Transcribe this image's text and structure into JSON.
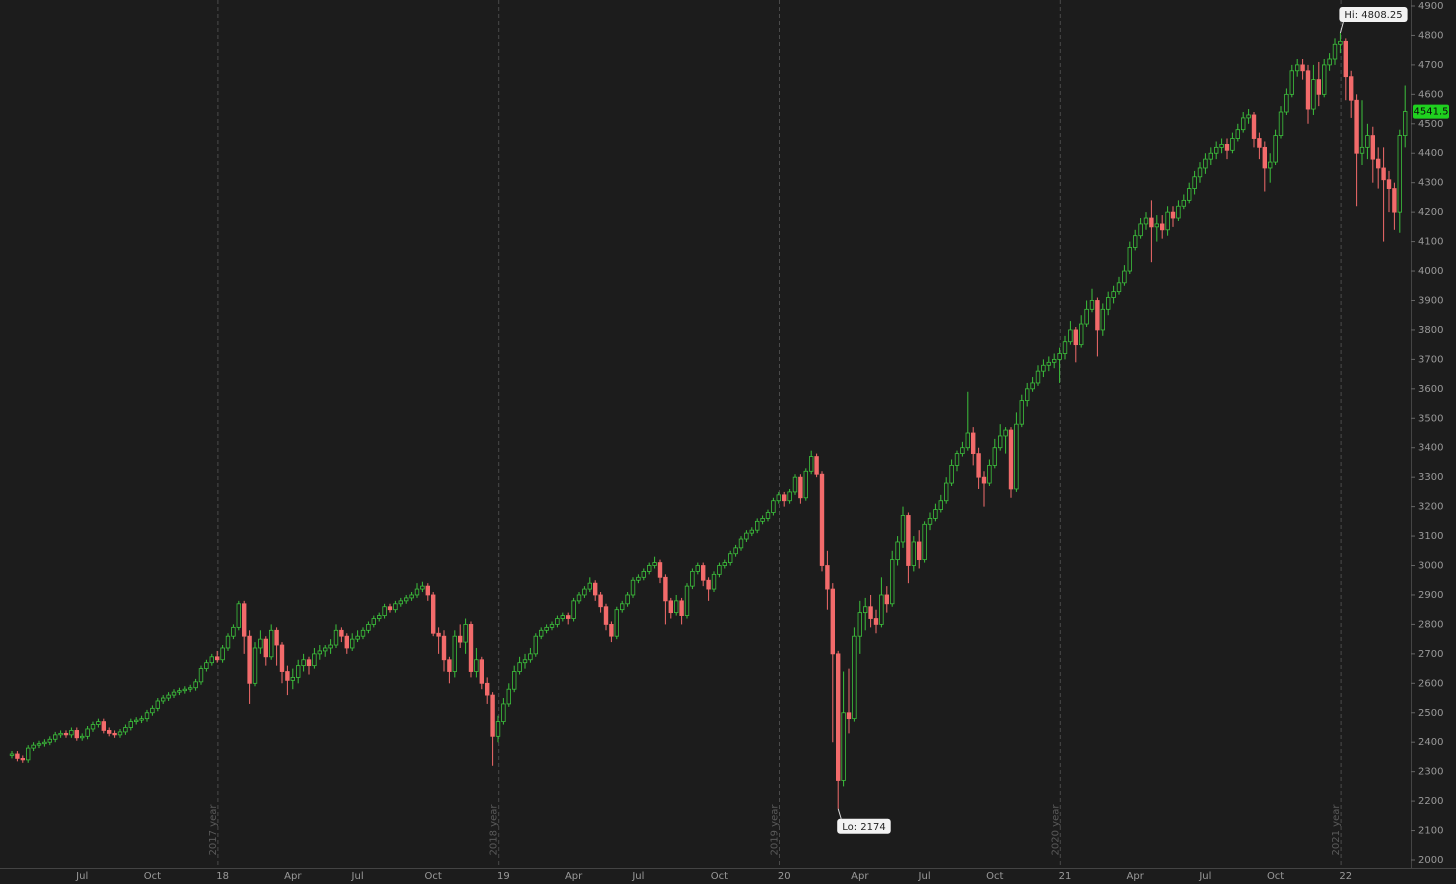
{
  "chart_data": {
    "type": "candlestick",
    "categories": [
      null,
      null,
      null,
      null,
      null,
      null,
      null,
      null,
      null,
      null,
      null,
      null,
      null,
      "Jul",
      null,
      null,
      null,
      null,
      null,
      null,
      null,
      null,
      null,
      null,
      null,
      null,
      "Oct",
      null,
      null,
      null,
      null,
      null,
      null,
      null,
      null,
      null,
      null,
      null,
      null,
      "18",
      null,
      null,
      null,
      null,
      null,
      null,
      null,
      null,
      null,
      null,
      null,
      null,
      "Apr",
      null,
      null,
      null,
      null,
      null,
      null,
      null,
      null,
      null,
      null,
      null,
      "Jul",
      null,
      null,
      null,
      null,
      null,
      null,
      null,
      null,
      null,
      null,
      null,
      null,
      null,
      "Oct",
      null,
      null,
      null,
      null,
      null,
      null,
      null,
      null,
      null,
      null,
      null,
      null,
      "19",
      null,
      null,
      null,
      null,
      null,
      null,
      null,
      null,
      null,
      null,
      null,
      null,
      "Apr",
      null,
      null,
      null,
      null,
      null,
      null,
      null,
      null,
      null,
      null,
      null,
      "Jul",
      null,
      null,
      null,
      null,
      null,
      null,
      null,
      null,
      null,
      null,
      null,
      null,
      null,
      null,
      "Oct",
      null,
      null,
      null,
      null,
      null,
      null,
      null,
      null,
      null,
      null,
      null,
      "20",
      null,
      null,
      null,
      null,
      null,
      null,
      null,
      null,
      null,
      null,
      null,
      null,
      null,
      "Apr",
      null,
      null,
      null,
      null,
      null,
      null,
      null,
      null,
      null,
      null,
      null,
      "Jul",
      null,
      null,
      null,
      null,
      null,
      null,
      null,
      null,
      null,
      null,
      null,
      null,
      "Oct",
      null,
      null,
      null,
      null,
      null,
      null,
      null,
      null,
      null,
      null,
      null,
      null,
      "21",
      null,
      null,
      null,
      null,
      null,
      null,
      null,
      null,
      null,
      null,
      null,
      null,
      "Apr",
      null,
      null,
      null,
      null,
      null,
      null,
      null,
      null,
      null,
      null,
      null,
      null,
      "Jul",
      null,
      null,
      null,
      null,
      null,
      null,
      null,
      null,
      null,
      null,
      null,
      null,
      "Oct",
      null,
      null,
      null,
      null,
      null,
      null,
      null,
      null,
      null,
      null,
      null,
      null,
      "22",
      null,
      null,
      null,
      null,
      null,
      null,
      null,
      null,
      null,
      null,
      null
    ],
    "open": [
      2355,
      2360,
      2345,
      2340,
      2380,
      2390,
      2395,
      2400,
      2410,
      2425,
      2430,
      2425,
      2440,
      2415,
      2420,
      2445,
      2460,
      2470,
      2440,
      2430,
      2425,
      2435,
      2450,
      2470,
      2475,
      2480,
      2500,
      2515,
      2540,
      2550,
      2560,
      2570,
      2575,
      2580,
      2585,
      2605,
      2650,
      2670,
      2690,
      2680,
      2720,
      2760,
      2790,
      2870,
      2760,
      2600,
      2720,
      2750,
      2690,
      2780,
      2730,
      2640,
      2610,
      2620,
      2660,
      2680,
      2660,
      2700,
      2710,
      2720,
      2730,
      2780,
      2760,
      2720,
      2750,
      2760,
      2780,
      2800,
      2820,
      2830,
      2860,
      2850,
      2870,
      2880,
      2890,
      2900,
      2920,
      2930,
      2900,
      2770,
      2760,
      2680,
      2640,
      2760,
      2740,
      2800,
      2640,
      2680,
      2600,
      2560,
      2420,
      2470,
      2530,
      2580,
      2640,
      2670,
      2680,
      2700,
      2760,
      2780,
      2790,
      2800,
      2820,
      2830,
      2820,
      2880,
      2900,
      2920,
      2940,
      2900,
      2860,
      2800,
      2760,
      2850,
      2870,
      2900,
      2950,
      2960,
      2980,
      3000,
      3010,
      2960,
      2880,
      2840,
      2880,
      2830,
      2930,
      2980,
      3000,
      2950,
      2920,
      2970,
      3000,
      3010,
      3040,
      3060,
      3090,
      3110,
      3120,
      3150,
      3160,
      3180,
      3220,
      3240,
      3220,
      3250,
      3300,
      3230,
      3320,
      3370,
      3310,
      3000,
      2920,
      2700,
      2270,
      2500,
      2480,
      2760,
      2840,
      2860,
      2820,
      2800,
      2900,
      2870,
      3020,
      3080,
      3170,
      3000,
      3080,
      3020,
      3140,
      3160,
      3190,
      3220,
      3280,
      3340,
      3380,
      3400,
      3450,
      3380,
      3300,
      3280,
      3340,
      3400,
      3440,
      3460,
      3260,
      3480,
      3560,
      3600,
      3620,
      3660,
      3680,
      3690,
      3700,
      3720,
      3760,
      3800,
      3750,
      3820,
      3870,
      3900,
      3800,
      3870,
      3910,
      3930,
      3960,
      4000,
      4080,
      4120,
      4160,
      4180,
      4150,
      4160,
      4140,
      4200,
      4180,
      4220,
      4240,
      4280,
      4320,
      4350,
      4380,
      4400,
      4420,
      4430,
      4410,
      4450,
      4480,
      4520,
      4530,
      4450,
      4420,
      4350,
      4370,
      4460,
      4540,
      4600,
      4680,
      4700,
      4680,
      4550,
      4650,
      4600,
      4700,
      4720,
      4770,
      4780,
      4660,
      4580,
      4400,
      4420,
      4460,
      4380,
      4350,
      4310,
      4280,
      4200,
      4460
    ],
    "high": [
      2370,
      2370,
      2355,
      2390,
      2400,
      2405,
      2410,
      2420,
      2435,
      2440,
      2440,
      2450,
      2450,
      2430,
      2455,
      2470,
      2480,
      2480,
      2450,
      2440,
      2445,
      2460,
      2480,
      2485,
      2490,
      2510,
      2525,
      2550,
      2560,
      2570,
      2580,
      2585,
      2590,
      2595,
      2615,
      2660,
      2680,
      2700,
      2710,
      2730,
      2770,
      2800,
      2880,
      2880,
      2780,
      2740,
      2780,
      2760,
      2800,
      2790,
      2740,
      2660,
      2650,
      2680,
      2700,
      2690,
      2720,
      2730,
      2730,
      2750,
      2800,
      2790,
      2770,
      2770,
      2780,
      2790,
      2810,
      2830,
      2840,
      2870,
      2870,
      2880,
      2890,
      2900,
      2910,
      2940,
      2945,
      2940,
      2910,
      2790,
      2780,
      2690,
      2780,
      2800,
      2820,
      2810,
      2720,
      2690,
      2620,
      2570,
      2490,
      2550,
      2600,
      2660,
      2690,
      2700,
      2720,
      2770,
      2790,
      2800,
      2810,
      2830,
      2840,
      2840,
      2890,
      2910,
      2930,
      2960,
      2950,
      2910,
      2870,
      2810,
      2860,
      2880,
      2910,
      2960,
      2970,
      2990,
      3010,
      3030,
      3020,
      2970,
      2890,
      2900,
      2890,
      2940,
      2990,
      3010,
      3010,
      2960,
      2980,
      3010,
      3020,
      3050,
      3070,
      3100,
      3120,
      3130,
      3160,
      3170,
      3190,
      3230,
      3250,
      3250,
      3260,
      3310,
      3310,
      3330,
      3390,
      3380,
      3320,
      3050,
      2940,
      2710,
      2640,
      2650,
      2790,
      2880,
      2890,
      2900,
      2850,
      2960,
      2930,
      3050,
      3100,
      3200,
      3180,
      3100,
      3120,
      3150,
      3180,
      3210,
      3240,
      3300,
      3360,
      3390,
      3420,
      3590,
      3470,
      3400,
      3320,
      3360,
      3430,
      3480,
      3470,
      3470,
      3520,
      3580,
      3620,
      3640,
      3680,
      3700,
      3710,
      3720,
      3740,
      3780,
      3830,
      3810,
      3850,
      3900,
      3940,
      3910,
      3890,
      3930,
      3950,
      3980,
      4020,
      4100,
      4140,
      4180,
      4200,
      4240,
      4190,
      4190,
      4220,
      4220,
      4240,
      4260,
      4300,
      4340,
      4370,
      4400,
      4420,
      4440,
      4450,
      4450,
      4470,
      4500,
      4540,
      4550,
      4540,
      4470,
      4440,
      4400,
      4480,
      4560,
      4620,
      4700,
      4720,
      4720,
      4700,
      4700,
      4710,
      4720,
      4740,
      4790,
      4808.25,
      4790,
      4680,
      4600,
      4580,
      4500,
      4490,
      4420,
      4420,
      4340,
      4300,
      4480,
      4630
    ],
    "low": [
      2345,
      2335,
      2330,
      2330,
      2370,
      2380,
      2385,
      2390,
      2400,
      2415,
      2415,
      2415,
      2405,
      2405,
      2410,
      2435,
      2450,
      2430,
      2420,
      2415,
      2415,
      2425,
      2440,
      2460,
      2465,
      2470,
      2490,
      2505,
      2530,
      2540,
      2550,
      2560,
      2565,
      2570,
      2575,
      2595,
      2640,
      2660,
      2670,
      2670,
      2710,
      2750,
      2780,
      2700,
      2530,
      2590,
      2700,
      2660,
      2680,
      2660,
      2600,
      2560,
      2580,
      2600,
      2640,
      2630,
      2650,
      2680,
      2690,
      2700,
      2720,
      2740,
      2700,
      2710,
      2740,
      2750,
      2770,
      2790,
      2810,
      2820,
      2840,
      2840,
      2860,
      2870,
      2880,
      2890,
      2910,
      2880,
      2760,
      2700,
      2640,
      2600,
      2620,
      2720,
      2700,
      2620,
      2620,
      2580,
      2530,
      2320,
      2400,
      2460,
      2520,
      2570,
      2630,
      2650,
      2670,
      2690,
      2750,
      2770,
      2780,
      2790,
      2810,
      2800,
      2810,
      2870,
      2890,
      2910,
      2880,
      2840,
      2780,
      2740,
      2750,
      2840,
      2860,
      2890,
      2940,
      2950,
      2970,
      2990,
      2940,
      2800,
      2820,
      2830,
      2800,
      2820,
      2920,
      2970,
      2930,
      2880,
      2910,
      2960,
      2990,
      3000,
      3030,
      3050,
      3080,
      3100,
      3110,
      3140,
      3150,
      3170,
      3210,
      3200,
      3210,
      3240,
      3210,
      3220,
      3310,
      3300,
      2980,
      2850,
      2400,
      2174,
      2250,
      2430,
      2470,
      2700,
      2780,
      2790,
      2770,
      2790,
      2840,
      2860,
      3000,
      3060,
      2940,
      2980,
      2990,
      3010,
      3120,
      3150,
      3180,
      3210,
      3270,
      3320,
      3370,
      3390,
      3340,
      3260,
      3200,
      3270,
      3330,
      3390,
      3380,
      3230,
      3250,
      3470,
      3540,
      3590,
      3610,
      3640,
      3660,
      3670,
      3620,
      3700,
      3750,
      3690,
      3740,
      3810,
      3860,
      3710,
      3780,
      3850,
      3890,
      3920,
      3950,
      3990,
      4070,
      4110,
      4140,
      4030,
      4100,
      4110,
      4120,
      4150,
      4170,
      4210,
      4230,
      4260,
      4300,
      4330,
      4360,
      4380,
      4400,
      4380,
      4400,
      4440,
      4470,
      4500,
      4420,
      4380,
      4270,
      4300,
      4360,
      4450,
      4530,
      4590,
      4660,
      4650,
      4500,
      4530,
      4560,
      4590,
      4680,
      4700,
      4740,
      4580,
      4520,
      4220,
      4360,
      4380,
      4300,
      4280,
      4100,
      4200,
      4140,
      4130,
      4420
    ],
    "close": [
      2360,
      2345,
      2340,
      2380,
      2390,
      2395,
      2400,
      2410,
      2425,
      2430,
      2425,
      2440,
      2415,
      2420,
      2445,
      2460,
      2470,
      2440,
      2430,
      2425,
      2435,
      2450,
      2470,
      2475,
      2480,
      2500,
      2515,
      2540,
      2550,
      2560,
      2570,
      2575,
      2580,
      2585,
      2605,
      2650,
      2670,
      2690,
      2680,
      2720,
      2760,
      2790,
      2870,
      2760,
      2600,
      2720,
      2750,
      2690,
      2780,
      2730,
      2640,
      2610,
      2620,
      2660,
      2680,
      2660,
      2700,
      2710,
      2720,
      2730,
      2780,
      2760,
      2720,
      2750,
      2760,
      2780,
      2800,
      2820,
      2830,
      2860,
      2850,
      2870,
      2880,
      2890,
      2900,
      2920,
      2930,
      2900,
      2770,
      2760,
      2680,
      2640,
      2760,
      2740,
      2800,
      2640,
      2680,
      2600,
      2560,
      2420,
      2470,
      2530,
      2580,
      2640,
      2670,
      2680,
      2700,
      2760,
      2780,
      2790,
      2800,
      2820,
      2830,
      2820,
      2880,
      2900,
      2920,
      2940,
      2900,
      2860,
      2800,
      2760,
      2850,
      2870,
      2900,
      2950,
      2960,
      2980,
      3000,
      3010,
      2960,
      2880,
      2840,
      2880,
      2830,
      2930,
      2980,
      3000,
      2950,
      2920,
      2970,
      3000,
      3010,
      3040,
      3060,
      3090,
      3110,
      3120,
      3150,
      3160,
      3180,
      3220,
      3240,
      3220,
      3250,
      3300,
      3230,
      3320,
      3370,
      3310,
      3000,
      2920,
      2700,
      2270,
      2500,
      2480,
      2760,
      2840,
      2860,
      2820,
      2800,
      2900,
      2870,
      3020,
      3080,
      3170,
      3000,
      3080,
      3020,
      3140,
      3160,
      3190,
      3220,
      3280,
      3340,
      3380,
      3400,
      3450,
      3380,
      3300,
      3280,
      3340,
      3400,
      3440,
      3460,
      3260,
      3480,
      3560,
      3600,
      3620,
      3660,
      3680,
      3690,
      3700,
      3720,
      3760,
      3800,
      3750,
      3820,
      3870,
      3900,
      3800,
      3870,
      3910,
      3930,
      3960,
      4000,
      4080,
      4120,
      4160,
      4180,
      4150,
      4160,
      4140,
      4200,
      4180,
      4220,
      4240,
      4280,
      4320,
      4350,
      4380,
      4400,
      4420,
      4430,
      4410,
      4450,
      4480,
      4520,
      4530,
      4450,
      4420,
      4350,
      4370,
      4460,
      4540,
      4600,
      4680,
      4700,
      4680,
      4550,
      4650,
      4600,
      4700,
      4720,
      4770,
      4780,
      4660,
      4580,
      4400,
      4420,
      4460,
      4380,
      4350,
      4310,
      4280,
      4200,
      4460,
      4541.5
    ],
    "up_color": "#3cc13c",
    "down_color": "#f26b6b",
    "ylim": [
      2000,
      4900
    ],
    "yticks": [
      2000,
      2100,
      2200,
      2300,
      2400,
      2500,
      2600,
      2700,
      2800,
      2900,
      3000,
      3100,
      3200,
      3300,
      3400,
      3500,
      3600,
      3700,
      3800,
      3900,
      4000,
      4100,
      4200,
      4300,
      4400,
      4500,
      4600,
      4700,
      4800,
      4900
    ],
    "year_labels": [
      "2017 year",
      "2018 year",
      "2019 year",
      "2020 year",
      "2021 year"
    ],
    "annotations": [
      {
        "text": "Hi: 4808.25",
        "value": 4808.25,
        "at": "high"
      },
      {
        "text": "Lo: 2174",
        "value": 2174,
        "at": "low"
      }
    ],
    "last_price": {
      "value": 4541.5,
      "label": "4541.5",
      "color": "#1fd11f"
    }
  }
}
